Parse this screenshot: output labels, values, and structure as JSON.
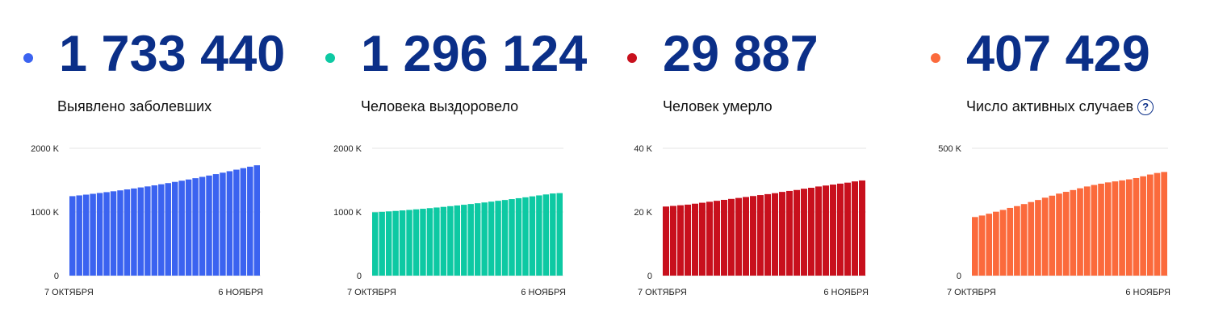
{
  "colors": {
    "number": "#0b2f88",
    "cases": "#3b63f0",
    "recovered": "#0dc9a3",
    "deaths": "#c8101d",
    "active": "#fb6a3c"
  },
  "help_icon": "?",
  "stats": [
    {
      "value": "1 733 440",
      "label": "Выявлено заболевших",
      "color": "#3b63f0"
    },
    {
      "value": "1 296 124",
      "label": "Человека выздоровело",
      "color": "#0dc9a3"
    },
    {
      "value": "29 887",
      "label": "Человек умерло",
      "color": "#c8101d"
    },
    {
      "value": "407 429",
      "label": "Число активных случаев",
      "color": "#fb6a3c"
    }
  ],
  "chart_data": [
    {
      "type": "bar",
      "x_start_label": "7 ОКТЯБРЯ",
      "x_end_label": "6 НОЯБРЯ",
      "ylim": [
        0,
        2000
      ],
      "yticks": [
        0,
        1000,
        2000
      ],
      "ytick_labels": [
        "0",
        "1000 K",
        "2000 K"
      ],
      "color": "#3b63f0",
      "values": [
        1248,
        1260,
        1272,
        1285,
        1298,
        1311,
        1325,
        1339,
        1354,
        1369,
        1385,
        1401,
        1418,
        1435,
        1453,
        1472,
        1491,
        1510,
        1530,
        1551,
        1572,
        1594,
        1617,
        1640,
        1664,
        1688,
        1711,
        1733
      ]
    },
    {
      "type": "bar",
      "x_start_label": "7 ОКТЯБРЯ",
      "x_end_label": "6 НОЯБРЯ",
      "ylim": [
        0,
        2000
      ],
      "yticks": [
        0,
        1000,
        2000
      ],
      "ytick_labels": [
        "0",
        "1000 K",
        "2000 K"
      ],
      "color": "#0dc9a3",
      "values": [
        995,
        1002,
        1009,
        1016,
        1024,
        1032,
        1041,
        1050,
        1060,
        1070,
        1080,
        1091,
        1102,
        1113,
        1125,
        1137,
        1149,
        1162,
        1175,
        1188,
        1202,
        1216,
        1230,
        1245,
        1260,
        1275,
        1290,
        1296
      ]
    },
    {
      "type": "bar",
      "x_start_label": "7 ОКТЯБРЯ",
      "x_end_label": "6 НОЯБРЯ",
      "ylim": [
        0,
        40
      ],
      "yticks": [
        0,
        20,
        40
      ],
      "ytick_labels": [
        "0",
        "20 K",
        "40 K"
      ],
      "color": "#c8101d",
      "values": [
        21.7,
        21.9,
        22.1,
        22.3,
        22.6,
        22.9,
        23.2,
        23.5,
        23.8,
        24.1,
        24.4,
        24.7,
        25.0,
        25.3,
        25.6,
        25.9,
        26.3,
        26.6,
        26.9,
        27.3,
        27.6,
        28.0,
        28.3,
        28.6,
        28.9,
        29.2,
        29.6,
        29.9
      ]
    },
    {
      "type": "bar",
      "x_start_label": "7 ОКТЯБРЯ",
      "x_end_label": "6 НОЯБРЯ",
      "ylim": [
        0,
        500
      ],
      "yticks": [
        0,
        500
      ],
      "ytick_labels": [
        "0",
        "500 K"
      ],
      "color": "#fb6a3c",
      "values": [
        230,
        236,
        243,
        251,
        258,
        266,
        273,
        281,
        289,
        297,
        306,
        314,
        322,
        329,
        336,
        343,
        350,
        356,
        361,
        366,
        370,
        374,
        378,
        383,
        390,
        397,
        403,
        407
      ]
    }
  ]
}
